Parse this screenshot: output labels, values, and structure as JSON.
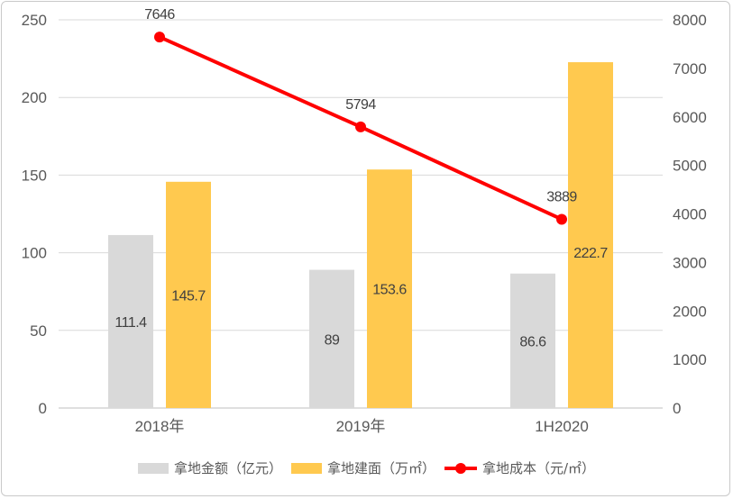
{
  "chart_data": {
    "type": "bar+line",
    "categories": [
      "2018年",
      "2019年",
      "1H2020"
    ],
    "series": [
      {
        "name": "拿地金额（亿元）",
        "type": "bar",
        "axis": "left",
        "color": "#d9d9d9",
        "values": [
          111.4,
          89,
          86.6
        ],
        "labels": [
          "111.4",
          "89",
          "86.6"
        ]
      },
      {
        "name": "拿地建面（万㎡）",
        "type": "bar",
        "axis": "left",
        "color": "#ffc94f",
        "values": [
          145.7,
          153.6,
          222.7
        ],
        "labels": [
          "145.7",
          "153.6",
          "222.7"
        ]
      },
      {
        "name": "拿地成本（元/㎡）",
        "type": "line",
        "axis": "right",
        "color": "#ff0000",
        "values": [
          7646,
          5794,
          3889
        ],
        "labels": [
          "7646",
          "5794",
          "3889"
        ]
      }
    ],
    "left_axis": {
      "range": [
        0,
        250
      ],
      "ticks": [
        "0",
        "50",
        "100",
        "150",
        "200",
        "250"
      ]
    },
    "right_axis": {
      "range": [
        0,
        8000
      ],
      "ticks": [
        "0",
        "1000",
        "2000",
        "3000",
        "4000",
        "5000",
        "6000",
        "7000",
        "8000"
      ]
    },
    "grid": true,
    "legend": "bottom"
  }
}
